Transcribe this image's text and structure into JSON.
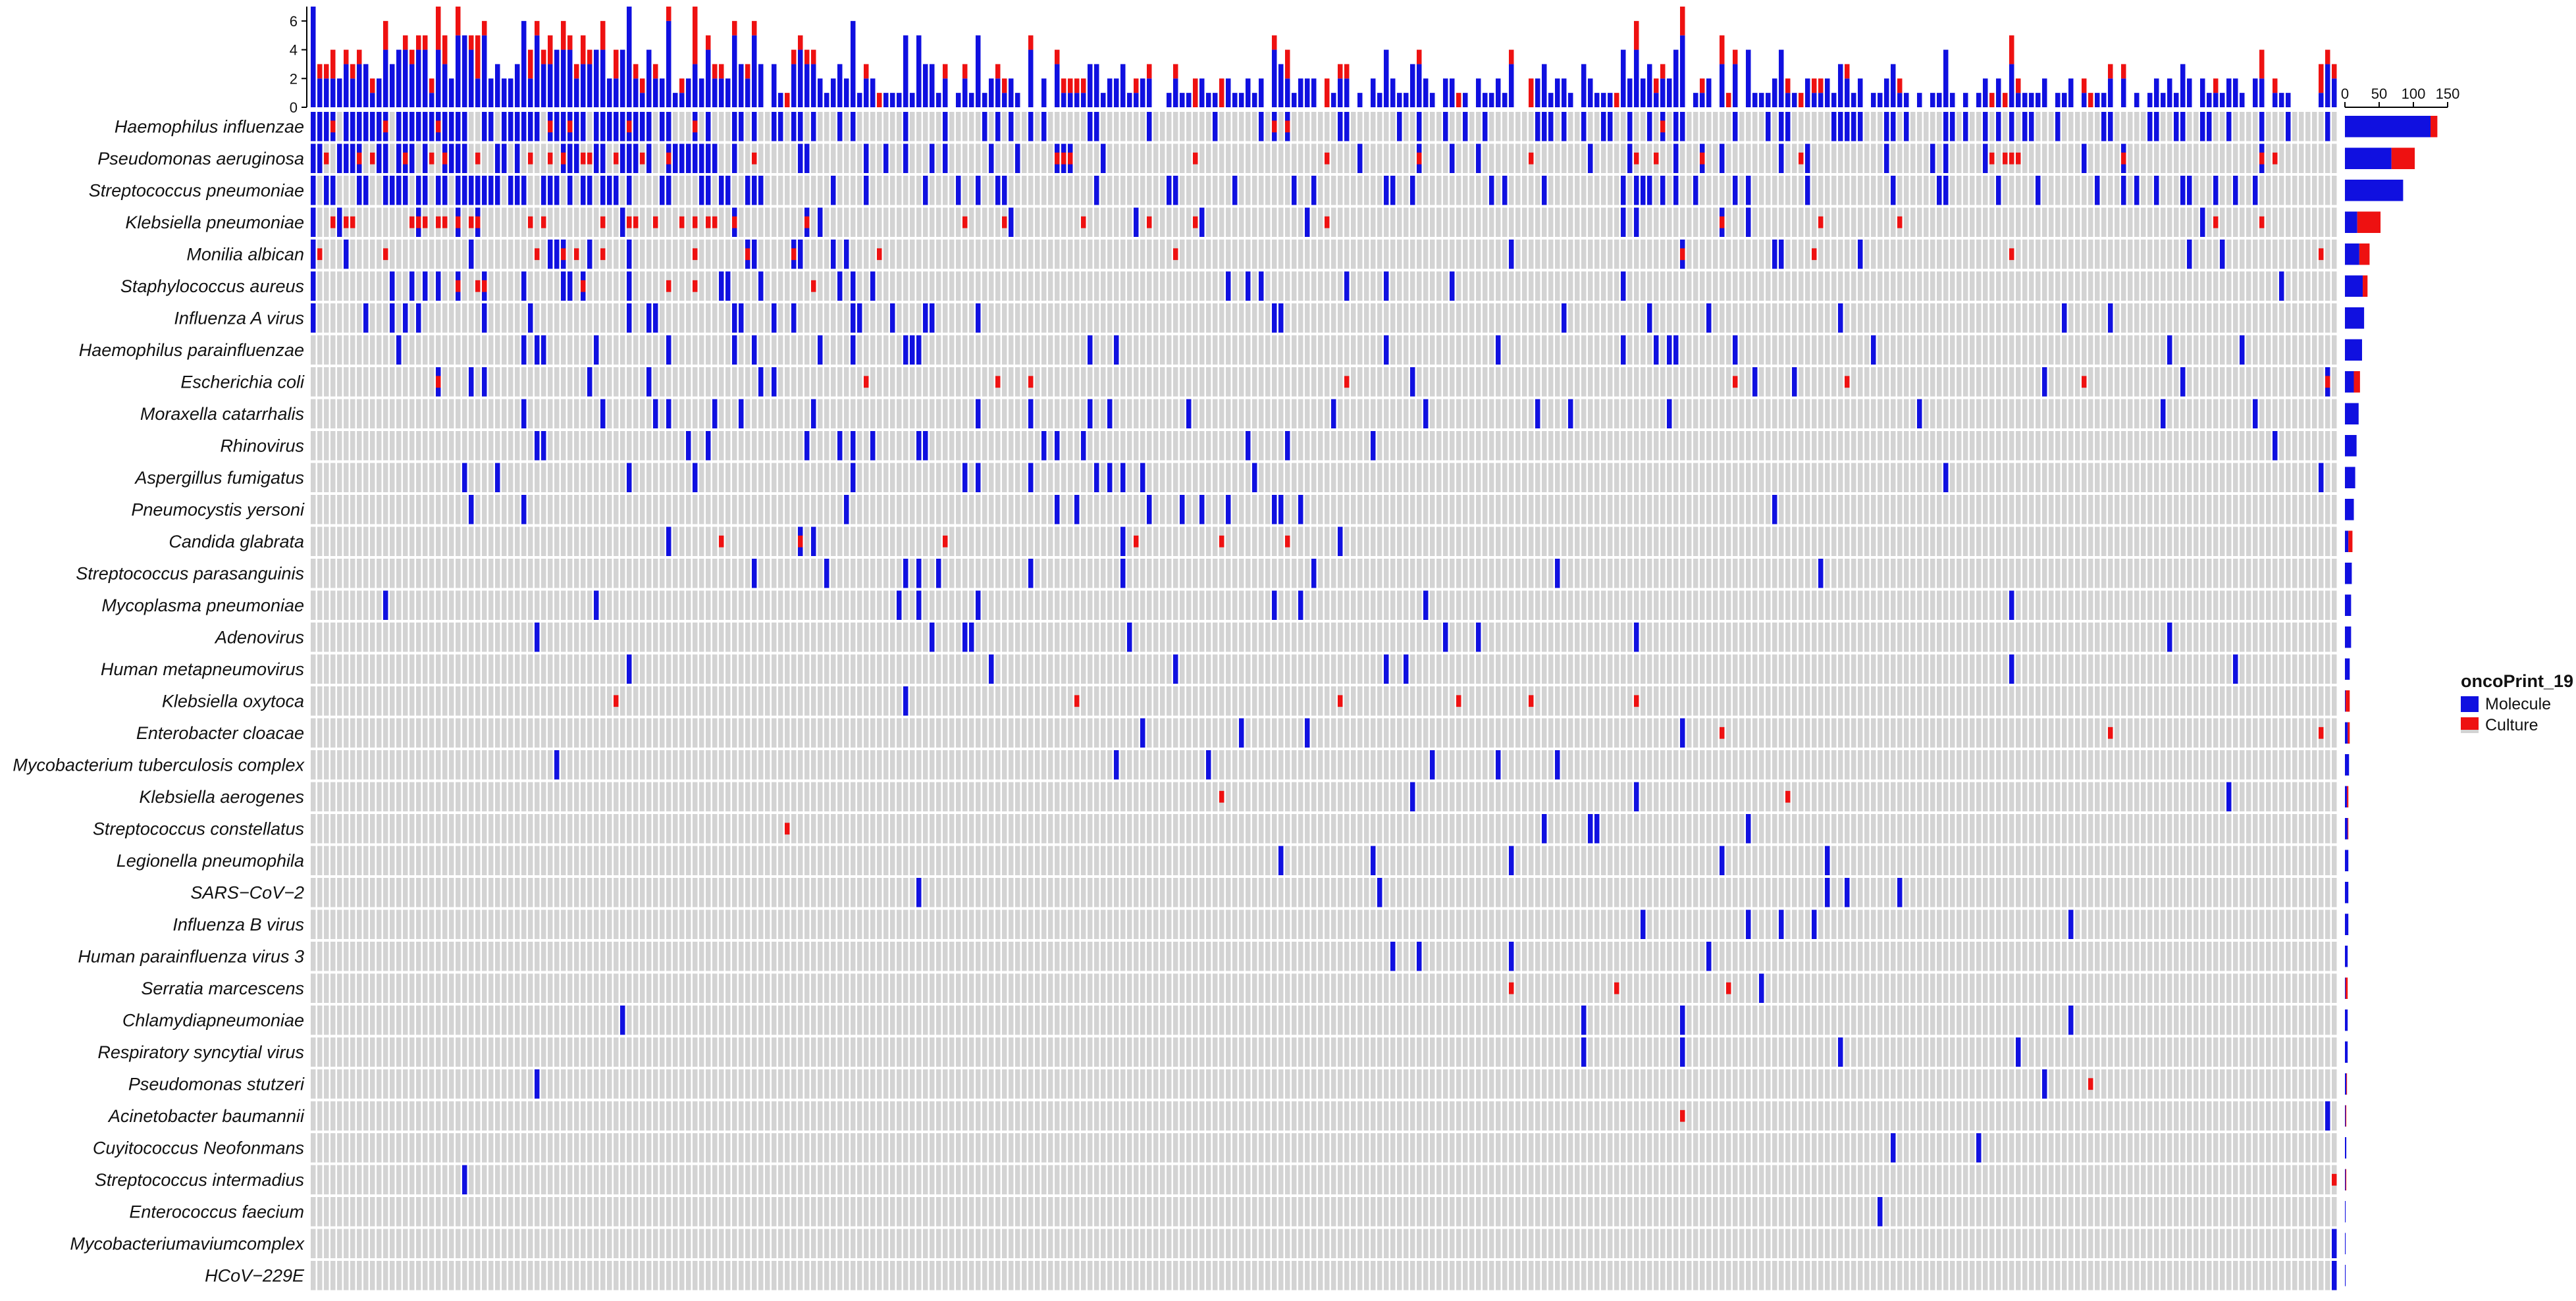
{
  "chart_data": {
    "type": "heatmap",
    "subtype": "oncoprint",
    "legend": {
      "title": "oncoPrint_19",
      "placement": "right",
      "items": [
        {
          "name": "Molecule",
          "color": "#1010e0"
        },
        {
          "name": "Culture",
          "color": "#ee1111"
        }
      ]
    },
    "background_color": "#d3d3d3",
    "n_samples": 308,
    "top_barplot": {
      "ylim": [
        0,
        7
      ],
      "ticks": [
        "0",
        "2",
        "4",
        "6"
      ]
    },
    "right_barplot": {
      "xlim": [
        0,
        150
      ],
      "ticks": [
        "0",
        "50",
        "100",
        "150"
      ]
    },
    "rows": [
      {
        "name": "Haemophilus influenzae",
        "molecule": 125,
        "culture": 10
      },
      {
        "name": "Pseudomonas aeruginosa",
        "molecule": 68,
        "culture": 34
      },
      {
        "name": "Streptococcus pneumoniae",
        "molecule": 85,
        "culture": 0
      },
      {
        "name": "Klebsiella pneumoniae",
        "molecule": 18,
        "culture": 34
      },
      {
        "name": "Monilia albican",
        "molecule": 21,
        "culture": 15
      },
      {
        "name": "Staphylococcus aureus",
        "molecule": 26,
        "culture": 7
      },
      {
        "name": "Influenza A virus",
        "molecule": 28,
        "culture": 0
      },
      {
        "name": "Haemophilus parainfluenzae",
        "molecule": 25,
        "culture": 0
      },
      {
        "name": "Escherichia coli",
        "molecule": 13,
        "culture": 9
      },
      {
        "name": "Moraxella catarrhalis",
        "molecule": 20,
        "culture": 0
      },
      {
        "name": "Rhinovirus",
        "molecule": 17,
        "culture": 0
      },
      {
        "name": "Aspergillus fumigatus",
        "molecule": 15,
        "culture": 0
      },
      {
        "name": "Pneumocystis yersoni",
        "molecule": 13,
        "culture": 0
      },
      {
        "name": "Candida glabrata",
        "molecule": 5,
        "culture": 6
      },
      {
        "name": "Streptococcus parasanguinis",
        "molecule": 10,
        "culture": 0
      },
      {
        "name": "Mycoplasma pneumoniae",
        "molecule": 9,
        "culture": 0
      },
      {
        "name": "Adenovirus",
        "molecule": 9,
        "culture": 0
      },
      {
        "name": "Human metapneumovirus",
        "molecule": 7,
        "culture": 0
      },
      {
        "name": "Klebsiella oxytoca",
        "molecule": 1,
        "culture": 6
      },
      {
        "name": "Enterobacter cloacae",
        "molecule": 4,
        "culture": 3
      },
      {
        "name": "Mycobacterium tuberculosis complex",
        "molecule": 6,
        "culture": 0
      },
      {
        "name": "Klebsiella aerogenes",
        "molecule": 3,
        "culture": 2
      },
      {
        "name": "Streptococcus constellatus",
        "molecule": 4,
        "culture": 1
      },
      {
        "name": "Legionella pneumophila",
        "molecule": 5,
        "culture": 0
      },
      {
        "name": "SARS−CoV−2",
        "molecule": 5,
        "culture": 0
      },
      {
        "name": "Influenza B virus",
        "molecule": 5,
        "culture": 0
      },
      {
        "name": "Human parainfluenza virus 3",
        "molecule": 4,
        "culture": 0
      },
      {
        "name": "Serratia marcescens",
        "molecule": 1,
        "culture": 3
      },
      {
        "name": "Chlamydiapneumoniae",
        "molecule": 4,
        "culture": 0
      },
      {
        "name": "Respiratory syncytial virus",
        "molecule": 4,
        "culture": 0
      },
      {
        "name": "Pseudomonas stutzeri",
        "molecule": 2,
        "culture": 1
      },
      {
        "name": "Acinetobacter baumannii",
        "molecule": 1,
        "culture": 1
      },
      {
        "name": "Cuyitococcus Neofonmans",
        "molecule": 2,
        "culture": 0
      },
      {
        "name": "Streptococcus intermadius",
        "molecule": 1,
        "culture": 1
      },
      {
        "name": "Enterococcus faecium",
        "molecule": 1,
        "culture": 0
      },
      {
        "name": "Mycobacteriumaviumcomplex",
        "molecule": 1,
        "culture": 0
      },
      {
        "name": "HCoV−229E",
        "molecule": 1,
        "culture": 0
      }
    ]
  }
}
